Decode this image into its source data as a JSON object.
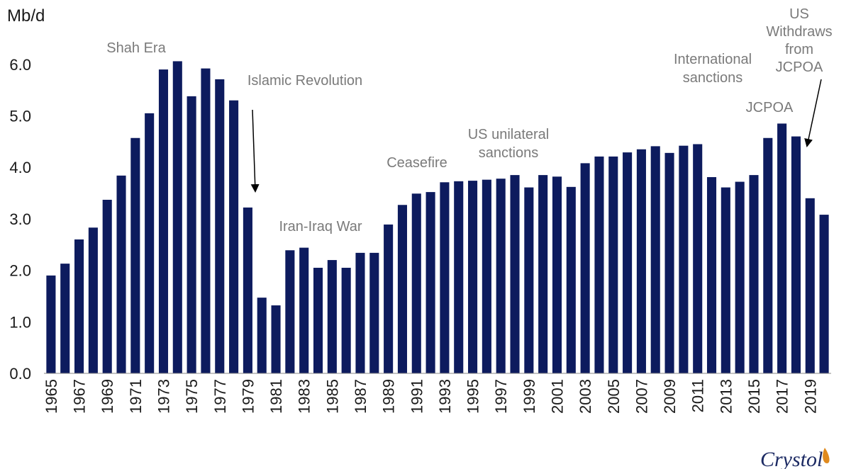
{
  "chart_data": {
    "type": "bar",
    "title": "",
    "xlabel": "",
    "ylabel": "Mb/d",
    "ylim": [
      0,
      6.5
    ],
    "yticks": [
      "0.0",
      "1.0",
      "2.0",
      "3.0",
      "4.0",
      "5.0",
      "6.0"
    ],
    "bar_color": "#0d1b5e",
    "x_tick_labels": [
      "1965",
      "1967",
      "1969",
      "1971",
      "1973",
      "1975",
      "1977",
      "1979",
      "1981",
      "1983",
      "1985",
      "1987",
      "1989",
      "1991",
      "1993",
      "1995",
      "1997",
      "1999",
      "2001",
      "2003",
      "2005",
      "2007",
      "2009",
      "2011",
      "2013",
      "2015",
      "2017",
      "2019"
    ],
    "categories": [
      "1965",
      "1966",
      "1967",
      "1968",
      "1969",
      "1970",
      "1971",
      "1972",
      "1973",
      "1974",
      "1975",
      "1976",
      "1977",
      "1978",
      "1979",
      "1980",
      "1981",
      "1982",
      "1983",
      "1984",
      "1985",
      "1986",
      "1987",
      "1988",
      "1989",
      "1990",
      "1991",
      "1992",
      "1993",
      "1994",
      "1995",
      "1996",
      "1997",
      "1998",
      "1999",
      "2000",
      "2001",
      "2002",
      "2003",
      "2004",
      "2005",
      "2006",
      "2007",
      "2008",
      "2009",
      "2010",
      "2011",
      "2012",
      "2013",
      "2014",
      "2015",
      "2016",
      "2017",
      "2018",
      "2019",
      "2020"
    ],
    "values": [
      1.9,
      2.13,
      2.6,
      2.83,
      3.37,
      3.84,
      4.57,
      5.05,
      5.9,
      6.06,
      5.38,
      5.92,
      5.71,
      5.3,
      3.22,
      1.47,
      1.32,
      2.39,
      2.44,
      2.05,
      2.2,
      2.05,
      2.34,
      2.34,
      2.89,
      3.27,
      3.49,
      3.52,
      3.71,
      3.73,
      3.74,
      3.76,
      3.78,
      3.85,
      3.61,
      3.85,
      3.82,
      3.62,
      4.08,
      4.21,
      4.21,
      4.29,
      4.35,
      4.41,
      4.28,
      4.42,
      4.45,
      3.81,
      3.61,
      3.72,
      3.85,
      4.57,
      4.85,
      4.6,
      3.4,
      3.08
    ],
    "annotations": [
      {
        "name": "annotation-shah-era",
        "lines": [
          "Shah Era"
        ],
        "year": "1975"
      },
      {
        "name": "annotation-islamic-revolution",
        "lines": [
          "Islamic Revolution"
        ],
        "year": "1981",
        "arrow_to": "1979"
      },
      {
        "name": "annotation-iran-iraq-war",
        "lines": [
          "Iran-Iraq War"
        ],
        "year": "1985"
      },
      {
        "name": "annotation-ceasefire",
        "lines": [
          "Ceasefire"
        ],
        "year": "1991"
      },
      {
        "name": "annotation-us-unilateral-sanctions",
        "lines": [
          "US unilateral",
          "sanctions"
        ],
        "year": "1996"
      },
      {
        "name": "annotation-international-sanctions",
        "lines": [
          "International",
          "sanctions"
        ],
        "year": "2010"
      },
      {
        "name": "annotation-jcpoa",
        "lines": [
          "JCPOA"
        ],
        "year": "2016"
      },
      {
        "name": "annotation-us-withdraws",
        "lines": [
          "US",
          "Withdraws",
          "from",
          "JCPOA"
        ],
        "year": "2019",
        "arrow_to": "2019"
      }
    ]
  },
  "brand": {
    "logo_text": "Crystol"
  }
}
